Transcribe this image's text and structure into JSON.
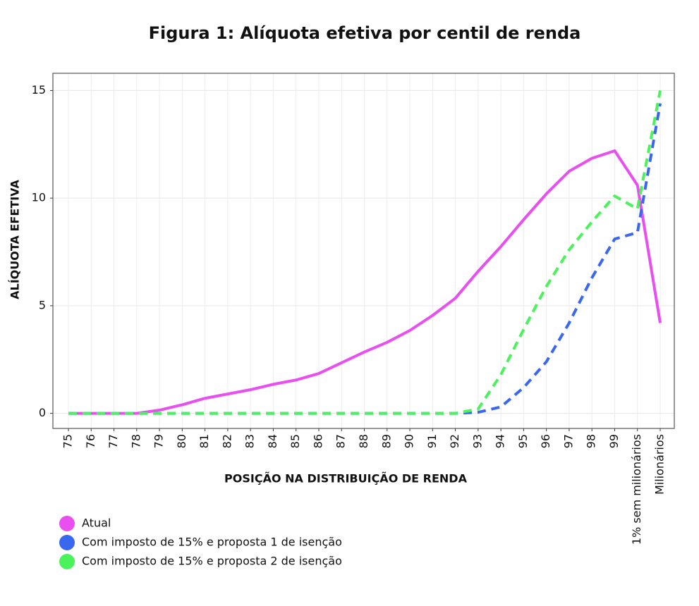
{
  "chart_data": {
    "type": "line",
    "title": "Figura 1: Alíquota efetiva por centil de renda",
    "x_label": "POSIÇÃO NA DISTRIBUIÇÃO DE RENDA",
    "y_label": "ALÍQUOTA EFETIVA",
    "categories": [
      "75",
      "76",
      "77",
      "78",
      "79",
      "80",
      "81",
      "82",
      "83",
      "84",
      "85",
      "86",
      "87",
      "88",
      "89",
      "90",
      "91",
      "92",
      "93",
      "94",
      "95",
      "96",
      "97",
      "98",
      "99",
      "1% sem milionários",
      "Milionários"
    ],
    "series": [
      {
        "name": "Atual",
        "color": "#e84ef0",
        "dashed": false,
        "values": [
          0,
          0,
          0,
          0,
          0.15,
          0.4,
          0.7,
          0.9,
          1.1,
          1.35,
          1.55,
          1.85,
          2.35,
          2.85,
          3.3,
          3.85,
          4.55,
          5.35,
          6.6,
          7.75,
          9.0,
          10.2,
          11.25,
          11.85,
          12.2,
          10.6,
          4.2
        ]
      },
      {
        "name": "Com imposto de 15% e proposta 1 de isenção",
        "color": "#3a67f0",
        "dashed": true,
        "values": [
          0,
          0,
          0,
          0,
          0,
          0,
          0,
          0,
          0,
          0,
          0,
          0,
          0,
          0,
          0,
          0,
          0,
          0,
          0.05,
          0.3,
          1.2,
          2.4,
          4.2,
          6.3,
          8.1,
          8.4,
          14.4
        ]
      },
      {
        "name": "Com imposto de 15% e proposta 2 de isenção",
        "color": "#4cf25c",
        "dashed": true,
        "values": [
          0,
          0,
          0,
          0,
          0,
          0,
          0,
          0,
          0,
          0,
          0,
          0,
          0,
          0,
          0,
          0,
          0,
          0,
          0.2,
          1.8,
          3.9,
          5.9,
          7.6,
          8.9,
          10.1,
          9.5,
          15.0
        ]
      }
    ],
    "ylim": [
      -0.7,
      15.8
    ],
    "yticks": [
      0,
      5,
      10,
      15
    ],
    "grid": true
  }
}
